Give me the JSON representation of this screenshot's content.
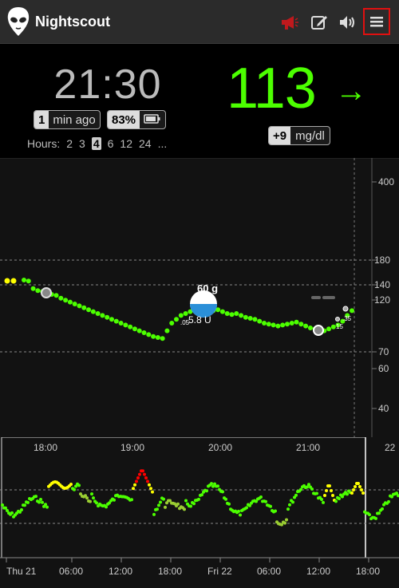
{
  "header": {
    "title": "Nightscout",
    "icons": [
      "alien-logo",
      "megaphone-icon",
      "edit-icon",
      "speaker-icon",
      "menu-icon"
    ]
  },
  "status": {
    "time": "21:30",
    "ago_num": "1",
    "ago_text": "min ago",
    "battery": "83%",
    "hours_label": "Hours:",
    "hours": [
      "2",
      "3",
      "4",
      "6",
      "12",
      "24",
      "..."
    ],
    "hours_selected": "4"
  },
  "reading": {
    "value": "113",
    "arrow": "→",
    "delta": "+9",
    "units": "mg/dl"
  },
  "colors": {
    "in_range": "#4cff00",
    "high": "#ffff00",
    "urgent": "#ff0000",
    "menu_highlight": "#e01010"
  },
  "chart_data": {
    "type": "scatter",
    "y_ticks": [
      "400",
      "180",
      "140",
      "120",
      "70",
      "60",
      "40"
    ],
    "x_ticks": [
      "18:00",
      "19:00",
      "20:00",
      "21:00",
      "22"
    ],
    "treatment": {
      "carbs": "60 g",
      "insulin": "5.8 U",
      "small_label": ".05"
    },
    "side_labels": [
      ".35",
      "15"
    ],
    "mg_dl_points": [
      145,
      144,
      136,
      134,
      133,
      131,
      130,
      129,
      126,
      124,
      122,
      120,
      118,
      116,
      114,
      112,
      110,
      108,
      106,
      104,
      102,
      100,
      98,
      96,
      94,
      92,
      90,
      88,
      86,
      85,
      84,
      92,
      100,
      104,
      108,
      110,
      112,
      114,
      115,
      116,
      115,
      113,
      114,
      112,
      110,
      109,
      110,
      108,
      106,
      105,
      104,
      102,
      100,
      99,
      98,
      97,
      98,
      99,
      100,
      101,
      99,
      97,
      95,
      94,
      93,
      92,
      94,
      96,
      98,
      102,
      108,
      113
    ],
    "focus_x_ticks": [
      "Thu 21",
      "06:00",
      "12:00",
      "18:00",
      "Fri 22",
      "06:00",
      "12:00",
      "18:00"
    ]
  }
}
